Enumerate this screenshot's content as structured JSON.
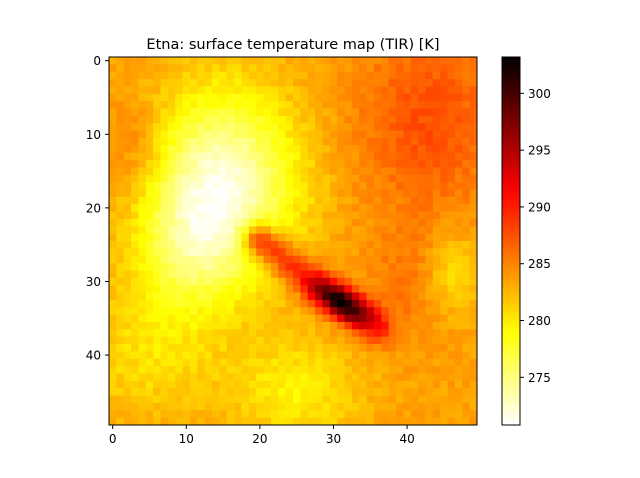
{
  "chart_data": {
    "type": "heatmap",
    "title": "Etna: surface temperature map (TIR) [K]",
    "xlabel": "",
    "ylabel": "",
    "grid": false,
    "colormap": "hot_r",
    "x_range": [
      -0.5,
      49.5
    ],
    "y_range": [
      -0.5,
      49.5
    ],
    "y_inverted": true,
    "x_ticks": [
      "0",
      "10",
      "20",
      "30",
      "40"
    ],
    "y_ticks": [
      "0",
      "10",
      "20",
      "30",
      "40"
    ],
    "colorbar": {
      "range": [
        270.8,
        303.2
      ],
      "ticks": [
        "275",
        "280",
        "285",
        "290",
        "295",
        "300"
      ]
    },
    "field_model": {
      "base_k": 283.6,
      "components": [
        {
          "kind": "cool_plateau",
          "center": [
            15,
            17
          ],
          "sigma": [
            7,
            9
          ],
          "amplitude_k": -11.5
        },
        {
          "kind": "cool_lobe",
          "center": [
            10,
            26
          ],
          "sigma": [
            5,
            6
          ],
          "amplitude_k": -4.5
        },
        {
          "kind": "cool_lobe",
          "center": [
            5,
            40
          ],
          "sigma": [
            7,
            6
          ],
          "amplitude_k": -3
        },
        {
          "kind": "cool_lobe",
          "center": [
            25,
            45
          ],
          "sigma": [
            6,
            5
          ],
          "amplitude_k": -4
        },
        {
          "kind": "cool_patch",
          "center": [
            46,
            29
          ],
          "sigma": [
            3,
            4
          ],
          "amplitude_k": -4
        },
        {
          "kind": "warm_region",
          "center": [
            43,
            8
          ],
          "sigma": [
            7,
            9
          ],
          "amplitude_k": 4
        },
        {
          "kind": "warm_region",
          "center": [
            41,
            30
          ],
          "sigma": [
            4,
            5
          ],
          "amplitude_k": 2.5
        },
        {
          "kind": "warm_edge",
          "center": [
            3,
            12
          ],
          "sigma": [
            3,
            5
          ],
          "amplitude_k": 2.5
        },
        {
          "kind": "hot_lava_flow",
          "from": [
            20,
            24.5
          ],
          "to": [
            36,
            36.5
          ],
          "halfwidth": 2.3,
          "peak_point": [
            31,
            33
          ],
          "peak_k": 303
        }
      ]
    }
  }
}
